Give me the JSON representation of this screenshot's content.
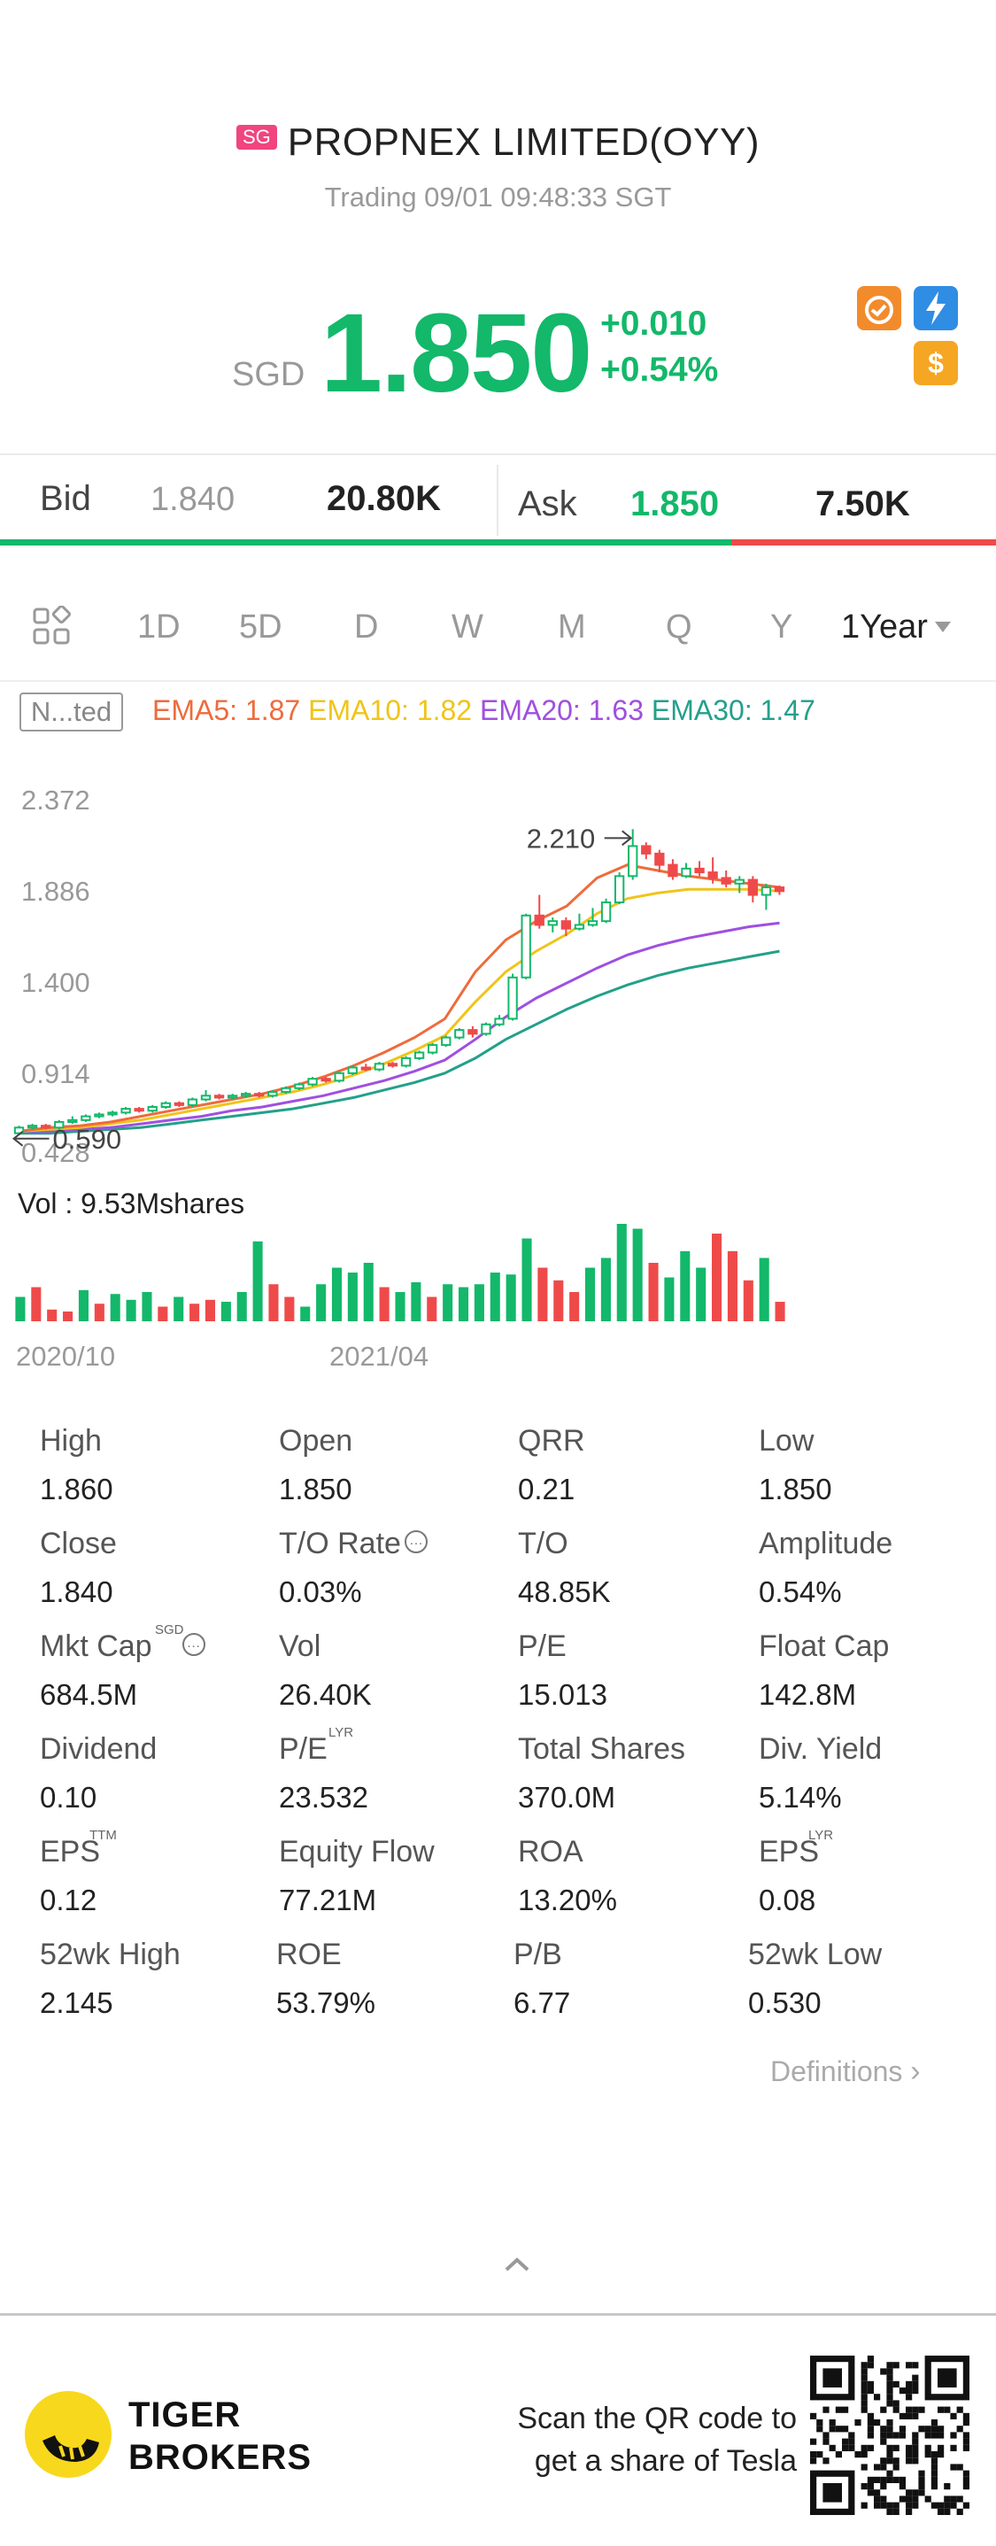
{
  "header": {
    "market_badge": "SG",
    "stock_name": "PROPNEX LIMITED(OYY)",
    "status": "Trading 09/01 09:48:33 SGT"
  },
  "quote": {
    "currency": "SGD",
    "price": "1.850",
    "change": "+0.010",
    "change_pct": "+0.54%",
    "color_up": "#13b86a",
    "icons": [
      "ranking-icon",
      "lightning-icon",
      "dollar-icon"
    ]
  },
  "bid_ask": {
    "bid_label": "Bid",
    "bid_price": "1.840",
    "bid_volume": "20.80K",
    "ask_label": "Ask",
    "ask_price": "1.850",
    "ask_volume": "7.50K",
    "bid_share": 0.734
  },
  "periods": {
    "tabs": [
      "1D",
      "5D",
      "D",
      "W",
      "M",
      "Q",
      "Y"
    ],
    "selected": "1Year"
  },
  "indicators": {
    "overlay_label": "N...ted",
    "ema5": "EMA5: 1.87",
    "ema10": "EMA10: 1.82",
    "ema20": "EMA20: 1.63",
    "ema30": "EMA30: 1.47"
  },
  "chart_data": {
    "type": "candlestick",
    "y_ticks": [
      "2.372",
      "1.886",
      "1.400",
      "0.914",
      "0.428"
    ],
    "ylim": [
      0.428,
      2.372
    ],
    "max_marker": "2.210",
    "min_marker": "0.590",
    "x_labels": [
      "2020/10",
      "2021/04"
    ],
    "volume_label": "Vol  : 9.53Mshares",
    "colors": {
      "up": "#13b86a",
      "down": "#ef4a4a"
    },
    "candles": [
      [
        0.59,
        0.62,
        0.58,
        0.63
      ],
      [
        0.62,
        0.63,
        0.61,
        0.64
      ],
      [
        0.63,
        0.62,
        0.61,
        0.64
      ],
      [
        0.62,
        0.65,
        0.61,
        0.66
      ],
      [
        0.65,
        0.66,
        0.64,
        0.68
      ],
      [
        0.66,
        0.68,
        0.65,
        0.69
      ],
      [
        0.68,
        0.69,
        0.67,
        0.7
      ],
      [
        0.69,
        0.7,
        0.68,
        0.71
      ],
      [
        0.7,
        0.72,
        0.69,
        0.73
      ],
      [
        0.72,
        0.71,
        0.7,
        0.73
      ],
      [
        0.71,
        0.73,
        0.7,
        0.74
      ],
      [
        0.73,
        0.75,
        0.72,
        0.76
      ],
      [
        0.75,
        0.74,
        0.73,
        0.76
      ],
      [
        0.74,
        0.77,
        0.73,
        0.78
      ],
      [
        0.77,
        0.79,
        0.76,
        0.82
      ],
      [
        0.79,
        0.78,
        0.77,
        0.8
      ],
      [
        0.78,
        0.79,
        0.77,
        0.8
      ],
      [
        0.79,
        0.8,
        0.78,
        0.81
      ],
      [
        0.8,
        0.79,
        0.78,
        0.81
      ],
      [
        0.79,
        0.81,
        0.78,
        0.82
      ],
      [
        0.81,
        0.83,
        0.8,
        0.84
      ],
      [
        0.83,
        0.85,
        0.82,
        0.86
      ],
      [
        0.85,
        0.88,
        0.84,
        0.89
      ],
      [
        0.88,
        0.87,
        0.86,
        0.89
      ],
      [
        0.87,
        0.91,
        0.86,
        0.92
      ],
      [
        0.91,
        0.94,
        0.9,
        0.95
      ],
      [
        0.94,
        0.93,
        0.92,
        0.96
      ],
      [
        0.93,
        0.96,
        0.92,
        0.97
      ],
      [
        0.96,
        0.95,
        0.94,
        0.97
      ],
      [
        0.95,
        0.99,
        0.94,
        1.0
      ],
      [
        0.99,
        1.02,
        0.98,
        1.03
      ],
      [
        1.02,
        1.06,
        1.01,
        1.07
      ],
      [
        1.06,
        1.1,
        1.05,
        1.11
      ],
      [
        1.1,
        1.14,
        1.09,
        1.15
      ],
      [
        1.14,
        1.12,
        1.1,
        1.16
      ],
      [
        1.12,
        1.17,
        1.11,
        1.18
      ],
      [
        1.17,
        1.2,
        1.16,
        1.22
      ],
      [
        1.2,
        1.42,
        1.19,
        1.44
      ],
      [
        1.42,
        1.75,
        1.41,
        1.76
      ],
      [
        1.75,
        1.7,
        1.68,
        1.86
      ],
      [
        1.7,
        1.72,
        1.66,
        1.74
      ],
      [
        1.72,
        1.68,
        1.64,
        1.74
      ],
      [
        1.68,
        1.7,
        1.67,
        1.76
      ],
      [
        1.7,
        1.72,
        1.69,
        1.79
      ],
      [
        1.72,
        1.82,
        1.71,
        1.84
      ],
      [
        1.82,
        1.96,
        1.81,
        1.98
      ],
      [
        1.96,
        2.12,
        1.94,
        2.21
      ],
      [
        2.12,
        2.08,
        2.05,
        2.14
      ],
      [
        2.08,
        2.02,
        1.98,
        2.1
      ],
      [
        2.02,
        1.96,
        1.94,
        2.05
      ],
      [
        1.96,
        2.0,
        1.95,
        2.03
      ],
      [
        2.0,
        1.98,
        1.96,
        2.04
      ],
      [
        1.98,
        1.95,
        1.92,
        2.06
      ],
      [
        1.95,
        1.92,
        1.9,
        1.99
      ],
      [
        1.92,
        1.94,
        1.87,
        1.96
      ],
      [
        1.94,
        1.86,
        1.82,
        1.96
      ],
      [
        1.86,
        1.9,
        1.78,
        1.92
      ],
      [
        1.9,
        1.88,
        1.86,
        1.91
      ]
    ],
    "ema5": [
      0.6,
      0.62,
      0.63,
      0.65,
      0.68,
      0.71,
      0.74,
      0.77,
      0.8,
      0.84,
      0.89,
      0.95,
      1.02,
      1.1,
      1.2,
      1.45,
      1.62,
      1.72,
      1.8,
      1.95,
      2.02,
      1.99,
      1.96,
      1.94,
      1.92,
      1.9
    ],
    "ema10": [
      0.6,
      0.61,
      0.62,
      0.64,
      0.66,
      0.69,
      0.72,
      0.75,
      0.78,
      0.81,
      0.85,
      0.9,
      0.96,
      1.03,
      1.11,
      1.29,
      1.45,
      1.56,
      1.65,
      1.76,
      1.84,
      1.87,
      1.89,
      1.89,
      1.89,
      1.88
    ],
    "ema20": [
      0.6,
      0.6,
      0.61,
      0.62,
      0.64,
      0.66,
      0.68,
      0.71,
      0.73,
      0.76,
      0.79,
      0.83,
      0.87,
      0.92,
      0.98,
      1.09,
      1.21,
      1.31,
      1.39,
      1.47,
      1.54,
      1.59,
      1.63,
      1.66,
      1.69,
      1.71
    ],
    "ema30": [
      0.59,
      0.59,
      0.6,
      0.61,
      0.62,
      0.64,
      0.66,
      0.68,
      0.7,
      0.72,
      0.75,
      0.78,
      0.82,
      0.86,
      0.91,
      0.99,
      1.09,
      1.17,
      1.25,
      1.32,
      1.38,
      1.43,
      1.47,
      1.5,
      1.53,
      1.56
    ],
    "volumes": [
      [
        0.25,
        1
      ],
      [
        0.35,
        0
      ],
      [
        0.12,
        0
      ],
      [
        0.1,
        0
      ],
      [
        0.32,
        1
      ],
      [
        0.18,
        0
      ],
      [
        0.28,
        1
      ],
      [
        0.22,
        1
      ],
      [
        0.3,
        1
      ],
      [
        0.15,
        0
      ],
      [
        0.25,
        1
      ],
      [
        0.18,
        0
      ],
      [
        0.22,
        0
      ],
      [
        0.2,
        1
      ],
      [
        0.3,
        1
      ],
      [
        0.82,
        1
      ],
      [
        0.38,
        0
      ],
      [
        0.25,
        0
      ],
      [
        0.15,
        1
      ],
      [
        0.38,
        1
      ],
      [
        0.55,
        1
      ],
      [
        0.5,
        1
      ],
      [
        0.6,
        1
      ],
      [
        0.35,
        0
      ],
      [
        0.3,
        1
      ],
      [
        0.4,
        1
      ],
      [
        0.25,
        0
      ],
      [
        0.38,
        1
      ],
      [
        0.35,
        1
      ],
      [
        0.38,
        1
      ],
      [
        0.5,
        1
      ],
      [
        0.48,
        1
      ],
      [
        0.85,
        1
      ],
      [
        0.55,
        0
      ],
      [
        0.42,
        0
      ],
      [
        0.3,
        0
      ],
      [
        0.55,
        1
      ],
      [
        0.65,
        1
      ],
      [
        1.0,
        1
      ],
      [
        0.95,
        1
      ],
      [
        0.6,
        0
      ],
      [
        0.45,
        1
      ],
      [
        0.72,
        1
      ],
      [
        0.55,
        1
      ],
      [
        0.9,
        0
      ],
      [
        0.72,
        0
      ],
      [
        0.42,
        0
      ],
      [
        0.65,
        1
      ],
      [
        0.2,
        0
      ]
    ]
  },
  "stats": [
    {
      "label": "High",
      "value": "1.860"
    },
    {
      "label": "Open",
      "value": "1.850"
    },
    {
      "label": "QRR",
      "value": "0.21"
    },
    {
      "label": "Low",
      "value": "1.850"
    },
    {
      "label": "Close",
      "value": "1.840"
    },
    {
      "label": "T/O Rate",
      "value": "0.03%"
    },
    {
      "label": "T/O",
      "value": "48.85K"
    },
    {
      "label": "Amplitude",
      "value": "0.54%"
    },
    {
      "label": "Mkt Cap",
      "value": "684.5M",
      "sup": "SGD"
    },
    {
      "label": "Vol",
      "value": "26.40K"
    },
    {
      "label": "P/E",
      "value": "15.013"
    },
    {
      "label": "Float Cap",
      "value": "142.8M"
    },
    {
      "label": "Dividend",
      "value": "0.10"
    },
    {
      "label": "P/E",
      "value": "23.532",
      "sup": "LYR"
    },
    {
      "label": "Total Shares",
      "value": "370.0M"
    },
    {
      "label": "Div. Yield",
      "value": "5.14%"
    },
    {
      "label": "EPS",
      "value": "0.12",
      "sup": "TTM"
    },
    {
      "label": "Equity Flow",
      "value": "77.21M"
    },
    {
      "label": "ROA",
      "value": "13.20%"
    },
    {
      "label": "EPS",
      "value": "0.08",
      "sup": "LYR"
    },
    {
      "label": "52wk High",
      "value": "2.145"
    },
    {
      "label": "ROE",
      "value": "53.79%"
    },
    {
      "label": "P/B",
      "value": "6.77"
    },
    {
      "label": "52wk Low",
      "value": "0.530"
    }
  ],
  "definitions_link": "Definitions",
  "footer": {
    "brand_line1": "TIGER",
    "brand_line2": "BROKERS",
    "scan_line1": "Scan the QR code to",
    "scan_line2": "get a share of Tesla"
  }
}
